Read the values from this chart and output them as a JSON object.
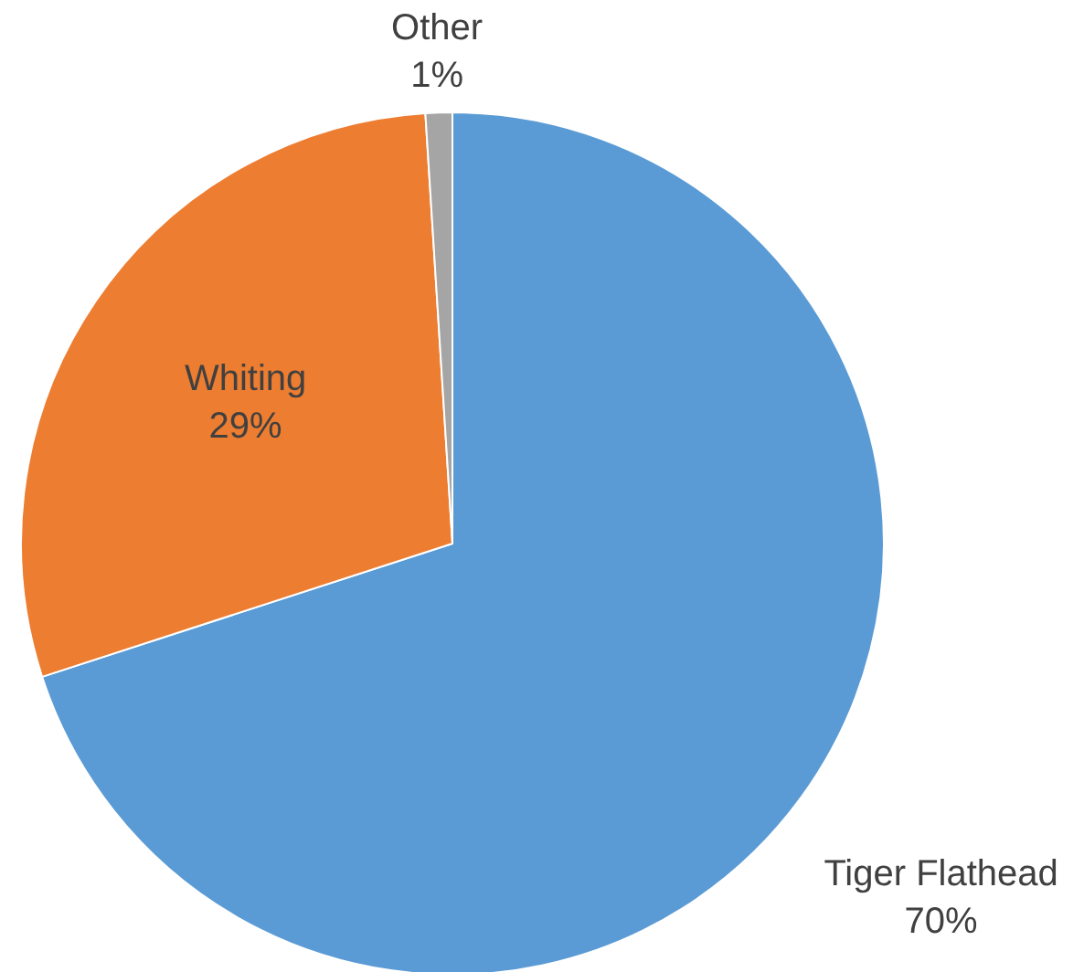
{
  "chart_data": {
    "type": "pie",
    "categories": [
      "Tiger Flathead",
      "Whiting",
      "Other"
    ],
    "values": [
      70,
      29,
      1
    ],
    "value_labels": [
      "70%",
      "29%",
      "1%"
    ],
    "colors": [
      "#5b9bd5",
      "#ed7d31",
      "#a5a5a5"
    ],
    "legend": false
  }
}
